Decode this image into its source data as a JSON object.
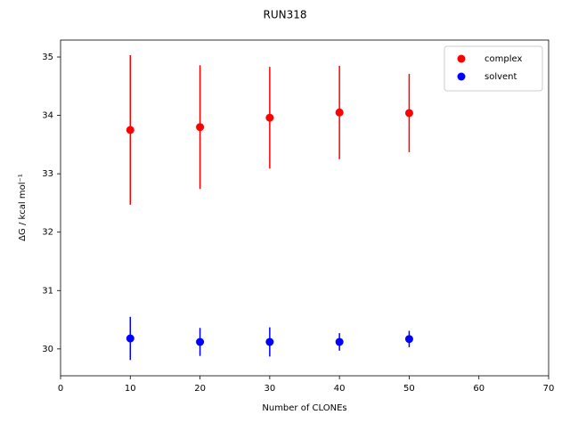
{
  "chart_data": {
    "type": "scatter",
    "title": "RUN318",
    "x_label": "Number of CLONEs",
    "y_label": "ΔG / kcal mol⁻¹",
    "x": [
      10,
      20,
      30,
      40,
      50
    ],
    "series": [
      {
        "name": "complex",
        "color": "#ff0000",
        "values": [
          33.75,
          33.8,
          33.96,
          34.05,
          34.04
        ],
        "errors": [
          1.28,
          1.06,
          0.87,
          0.8,
          0.67
        ]
      },
      {
        "name": "solvent",
        "color": "#0000ff",
        "values": [
          30.18,
          30.12,
          30.12,
          30.12,
          30.17
        ],
        "errors": [
          0.37,
          0.24,
          0.25,
          0.15,
          0.14
        ]
      }
    ],
    "xlim": [
      0,
      70
    ],
    "xticks": [
      0,
      10,
      20,
      30,
      40,
      50,
      60,
      70
    ],
    "ylim": [
      29.54,
      35.29
    ],
    "yticks": [
      30,
      31,
      32,
      33,
      34,
      35
    ],
    "legend": "upper right"
  }
}
